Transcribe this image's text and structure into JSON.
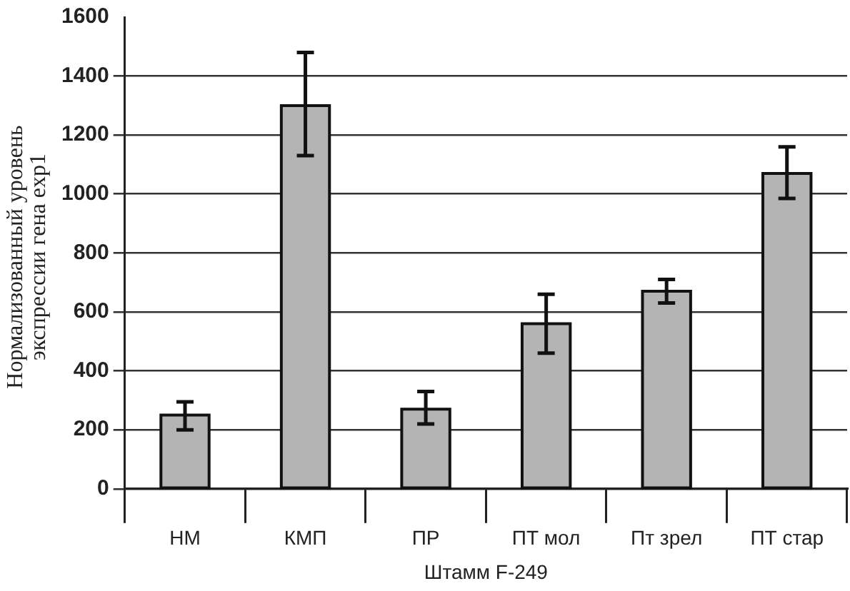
{
  "chart_data": {
    "type": "bar",
    "xlabel": "Штамм F-249",
    "ylabel": "Нормализованный уровень экспрессии гена exp1",
    "categories": [
      "НМ",
      "КМП",
      "ПР",
      "ПТ мол",
      "Пт зрел",
      "ПТ стар"
    ],
    "values": [
      250,
      1300,
      270,
      560,
      670,
      1070
    ],
    "errors": [
      [
        200,
        295
      ],
      [
        1130,
        1480
      ],
      [
        220,
        330
      ],
      [
        460,
        660
      ],
      [
        630,
        710
      ],
      [
        985,
        1160
      ]
    ],
    "color": "#b4b4b4",
    "ylim": [
      0,
      1600
    ],
    "yticks": [
      0,
      200,
      400,
      600,
      800,
      1000,
      1200,
      1400,
      1600
    ],
    "grid": "y",
    "legend": false
  }
}
